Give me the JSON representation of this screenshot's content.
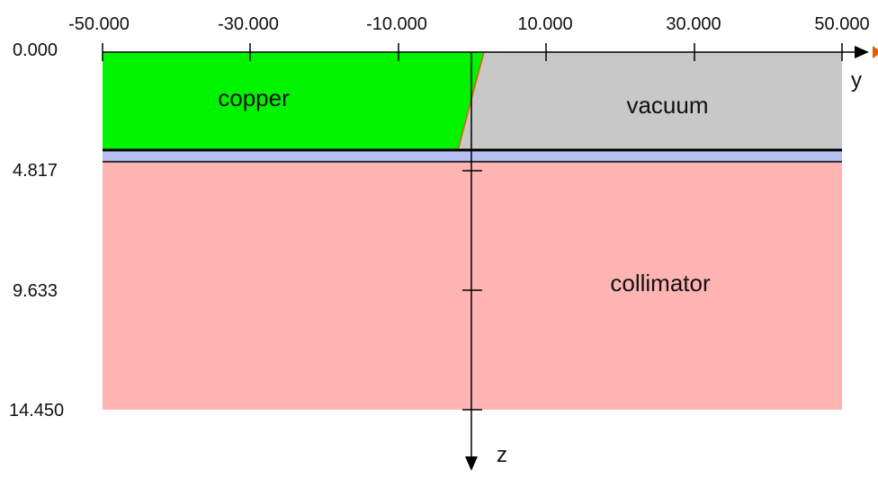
{
  "y_axis": {
    "label": "y",
    "ticks": [
      "-50.000",
      "-30.000",
      "-10.000",
      "10.000",
      "30.000",
      "50.000"
    ]
  },
  "z_axis": {
    "label": "z",
    "ticks": [
      "0.000",
      "4.817",
      "9.633",
      "14.450"
    ]
  },
  "regions": {
    "copper": "copper",
    "vacuum": "vacuum",
    "collimator": "collimator"
  },
  "colors": {
    "copper": "#00f400",
    "vacuum": "#c8c8c8",
    "collimator": "#ffb4b4",
    "interface_layer": "#b4c0f0",
    "axis_arrow_accent": "#e06000"
  }
}
